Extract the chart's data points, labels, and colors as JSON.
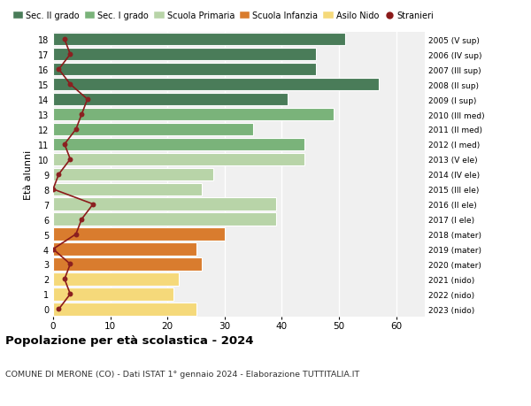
{
  "ages": [
    18,
    17,
    16,
    15,
    14,
    13,
    12,
    11,
    10,
    9,
    8,
    7,
    6,
    5,
    4,
    3,
    2,
    1,
    0
  ],
  "anni_nascita": [
    "2005 (V sup)",
    "2006 (IV sup)",
    "2007 (III sup)",
    "2008 (II sup)",
    "2009 (I sup)",
    "2010 (III med)",
    "2011 (II med)",
    "2012 (I med)",
    "2013 (V ele)",
    "2014 (IV ele)",
    "2015 (III ele)",
    "2016 (II ele)",
    "2017 (I ele)",
    "2018 (mater)",
    "2019 (mater)",
    "2020 (mater)",
    "2021 (nido)",
    "2022 (nido)",
    "2023 (nido)"
  ],
  "bar_values": [
    51,
    46,
    46,
    57,
    41,
    49,
    35,
    44,
    44,
    28,
    26,
    39,
    39,
    30,
    25,
    26,
    22,
    21,
    25
  ],
  "bar_colors": [
    "#4a7c59",
    "#4a7c59",
    "#4a7c59",
    "#4a7c59",
    "#4a7c59",
    "#7ab37a",
    "#7ab37a",
    "#7ab37a",
    "#b8d4a8",
    "#b8d4a8",
    "#b8d4a8",
    "#b8d4a8",
    "#b8d4a8",
    "#d97c2e",
    "#d97c2e",
    "#d97c2e",
    "#f5d97a",
    "#f5d97a",
    "#f5d97a"
  ],
  "stranieri_values": [
    2,
    3,
    1,
    3,
    6,
    5,
    4,
    2,
    3,
    1,
    0,
    7,
    5,
    4,
    0,
    3,
    2,
    3,
    1
  ],
  "legend_labels": [
    "Sec. II grado",
    "Sec. I grado",
    "Scuola Primaria",
    "Scuola Infanzia",
    "Asilo Nido",
    "Stranieri"
  ],
  "legend_colors": [
    "#4a7c59",
    "#7ab37a",
    "#b8d4a8",
    "#d97c2e",
    "#f5d97a",
    "#8b1a1a"
  ],
  "title": "Popolazione per età scolastica - 2024",
  "subtitle": "COMUNE DI MERONE (CO) - Dati ISTAT 1° gennaio 2024 - Elaborazione TUTTITALIA.IT",
  "ylabel_left": "Età alunni",
  "xlim": [
    0,
    65
  ],
  "plot_bg_color": "#f0f0f0",
  "bg_color": "#ffffff",
  "grid_color": "#ffffff",
  "bar_edge_color": "#ffffff",
  "stranieri_line_color": "#8b1a1a",
  "stranieri_dot_color": "#8b2020"
}
